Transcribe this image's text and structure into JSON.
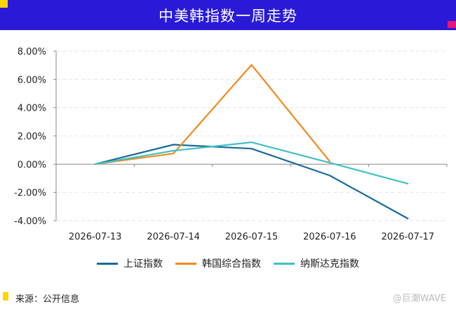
{
  "header": {
    "title": "中美韩指数一周走势"
  },
  "chart_data": {
    "type": "line",
    "title": "中美韩指数一周走势",
    "categories": [
      "2026-07-13",
      "2026-07-14",
      "2026-07-15",
      "2026-07-16",
      "2026-07-17"
    ],
    "y_ticks": [
      "8.00%",
      "6.00%",
      "4.00%",
      "2.00%",
      "0.00%",
      "-2.00%",
      "-4.00%"
    ],
    "ylim": [
      -4,
      8
    ],
    "y_unit": "%",
    "grid": true,
    "legend_position": "bottom",
    "series": [
      {
        "name": "上证指数",
        "color": "#1a6b97",
        "values": [
          0.0,
          1.38,
          1.1,
          -0.8,
          -3.85
        ]
      },
      {
        "name": "韩国综合指数",
        "color": "#ee8a1d",
        "values": [
          0.0,
          0.75,
          7.03,
          0.2,
          null
        ]
      },
      {
        "name": "纳斯达克指数",
        "color": "#3fc1c0",
        "values": [
          0.0,
          0.95,
          1.55,
          0.1,
          -1.38
        ]
      }
    ]
  },
  "footer": {
    "source": "来源：公开信息",
    "watermark": "@巨潮WAVE"
  }
}
